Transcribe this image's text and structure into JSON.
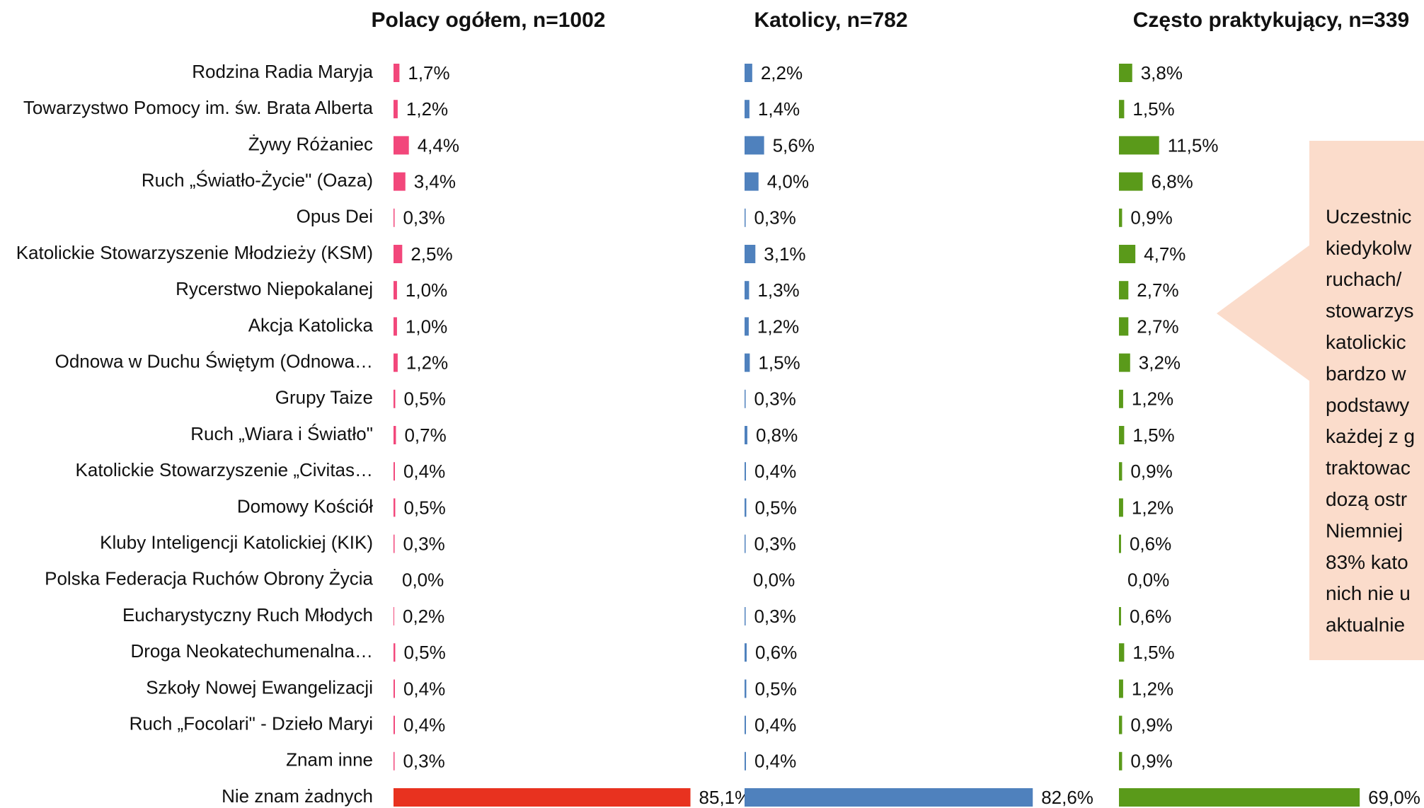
{
  "chart_data": {
    "type": "bar",
    "orientation": "horizontal",
    "categories": [
      "Rodzina Radia Maryja",
      "Towarzystwo Pomocy im. św. Brata Alberta",
      "Żywy Różaniec",
      "Ruch „Światło-Życie\" (Oaza)",
      "Opus Dei",
      "Katolickie Stowarzyszenie Młodzieży (KSM)",
      "Rycerstwo Niepokalanej",
      "Akcja Katolicka",
      "Odnowa w Duchu Świętym (Odnowa…",
      "Grupy Taize",
      "Ruch „Wiara i Światło\"",
      "Katolickie Stowarzyszenie „Civitas…",
      "Domowy Kościół",
      "Kluby Inteligencji Katolickiej (KIK)",
      "Polska Federacja Ruchów Obrony Życia",
      "Eucharystyczny Ruch Młodych",
      "Droga Neokatechumenalna…",
      "Szkoły Nowej Ewangelizacji",
      "Ruch „Focolari\" - Dzieło Maryi",
      "Znam inne",
      "Nie znam żadnych"
    ],
    "series": [
      {
        "name": "Polacy ogółem, n=1002",
        "color": "#f2477b",
        "bar_colors": [
          "#f2477b",
          "#f2477b",
          "#f2477b",
          "#f2477b",
          "#f2477b",
          "#f2477b",
          "#f2477b",
          "#f2477b",
          "#f2477b",
          "#f2477b",
          "#f2477b",
          "#f2477b",
          "#f2477b",
          "#f2477b",
          "#f2477b",
          "#f2477b",
          "#f2477b",
          "#f2477b",
          "#f2477b",
          "#f2477b",
          "#e8321f"
        ],
        "values": [
          1.7,
          1.2,
          4.4,
          3.4,
          0.3,
          2.5,
          1.0,
          1.0,
          1.2,
          0.5,
          0.7,
          0.4,
          0.5,
          0.3,
          0.0,
          0.2,
          0.5,
          0.4,
          0.4,
          0.3,
          85.1
        ],
        "value_labels": [
          "1,7%",
          "1,2%",
          "4,4%",
          "3,4%",
          "0,3%",
          "2,5%",
          "1,0%",
          "1,0%",
          "1,2%",
          "0,5%",
          "0,7%",
          "0,4%",
          "0,5%",
          "0,3%",
          "0,0%",
          "0,2%",
          "0,5%",
          "0,4%",
          "0,4%",
          "0,3%",
          "85,1%"
        ]
      },
      {
        "name": "Katolicy, n=782",
        "color": "#4f81bd",
        "values": [
          2.2,
          1.4,
          5.6,
          4.0,
          0.3,
          3.1,
          1.3,
          1.2,
          1.5,
          0.3,
          0.8,
          0.4,
          0.5,
          0.3,
          0.0,
          0.3,
          0.6,
          0.5,
          0.4,
          0.4,
          82.6
        ],
        "value_labels": [
          "2,2%",
          "1,4%",
          "5,6%",
          "4,0%",
          "0,3%",
          "3,1%",
          "1,3%",
          "1,2%",
          "1,5%",
          "0,3%",
          "0,8%",
          "0,4%",
          "0,5%",
          "0,3%",
          "0,0%",
          "0,3%",
          "0,6%",
          "0,5%",
          "0,4%",
          "0,4%",
          "82,6%"
        ]
      },
      {
        "name": "Często praktykujący, n=339",
        "color": "#5a9a1a",
        "values": [
          3.8,
          1.5,
          11.5,
          6.8,
          0.9,
          4.7,
          2.7,
          2.7,
          3.2,
          1.2,
          1.5,
          0.9,
          1.2,
          0.6,
          0.0,
          0.6,
          1.5,
          1.2,
          0.9,
          0.9,
          69.0
        ],
        "value_labels": [
          "3,8%",
          "1,5%",
          "11,5%",
          "6,8%",
          "0,9%",
          "4,7%",
          "2,7%",
          "2,7%",
          "3,2%",
          "1,2%",
          "1,5%",
          "0,9%",
          "1,2%",
          "0,6%",
          "0,0%",
          "0,6%",
          "1,5%",
          "1,2%",
          "0,9%",
          "0,9%",
          "69,0%"
        ]
      }
    ],
    "annotation": [
      "Uczestnic",
      "kiedykolw",
      "ruchach/",
      "stowarzys",
      "katolickic",
      "bardzo w",
      "podstawy",
      "każdej z g",
      "traktowac",
      "dozą ostr",
      "Niemniej",
      "83% kato",
      "nich nie u",
      "aktualnie"
    ]
  }
}
